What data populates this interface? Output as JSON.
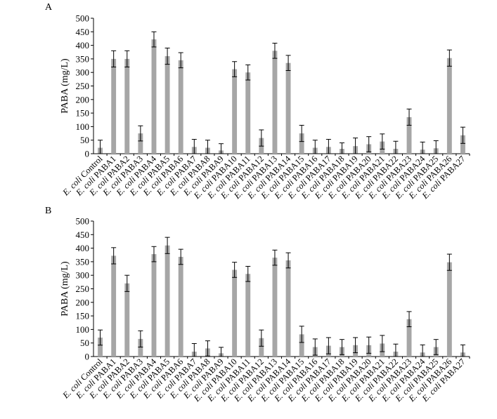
{
  "chart_data": [
    {
      "type": "bar",
      "panel": "A",
      "ylabel": "PABA (mg/L)",
      "ylim": [
        0,
        500
      ],
      "yticks": [
        0,
        50,
        100,
        150,
        200,
        250,
        300,
        350,
        400,
        450,
        500
      ],
      "grid": false,
      "categories": [
        "E. coli Control",
        "E. coli PABA1",
        "E. coli PABA2",
        "E. coli PABA3",
        "E. coli PABA4",
        "E. coli PABA5",
        "E. coli PABA6",
        "E. coli PABA7",
        "E. coli PABA8",
        "E. coli PABA9",
        "E. coli PABA10",
        "E. coli PABA11",
        "E. coli PABA12",
        "E. coli PABA13",
        "E. coli PABA14",
        "E. coli PABA15",
        "E. coli PABA16",
        "E. coli PABA17",
        "E. coli PABA18",
        "E. coli PABA19",
        "E. coli PABA20",
        "E. coli PABA21",
        "E. coli PABA22",
        "E. coli PABA23",
        "E. coli PABA24",
        "E. coli PABA25",
        "E. coli PABA26",
        "E. coli PABA27"
      ],
      "values": [
        22,
        350,
        350,
        75,
        422,
        360,
        345,
        25,
        22,
        12,
        312,
        300,
        58,
        380,
        335,
        75,
        22,
        25,
        18,
        28,
        35,
        45,
        18,
        135,
        15,
        20,
        353,
        68
      ],
      "errors": [
        28,
        30,
        30,
        28,
        28,
        30,
        28,
        28,
        28,
        25,
        28,
        28,
        30,
        28,
        28,
        30,
        28,
        28,
        22,
        30,
        28,
        28,
        28,
        30,
        28,
        28,
        30,
        30
      ],
      "bar_color": "#a6a6a6"
    },
    {
      "type": "bar",
      "panel": "B",
      "ylabel": "PABA (mg/L)",
      "ylim": [
        0,
        500
      ],
      "yticks": [
        0,
        50,
        100,
        150,
        200,
        250,
        300,
        350,
        400,
        450,
        500
      ],
      "grid": false,
      "categories": [
        "E. coli Control",
        "E. coli PABA1",
        "E. coli PABA2",
        "E. coli PABA3",
        "E. coli PABA4",
        "E. coli PABA5",
        "E. coli PABA6",
        "E. coli PABA7",
        "E. coli PABA8",
        "E. coli PABA9",
        "E. coli PABA10",
        "E. coli PABA11",
        "E. coli PABA12",
        "E. coli PABA13",
        "E. coli PABA14",
        "E. coli PABA15",
        "E. coli PABA16",
        "E. coli PABA17",
        "E. coli PABA18",
        "E. coli PABA19",
        "E. coli PABA20",
        "E. coli PABA21",
        "E. coli PABA22",
        "E. coli PABA23",
        "E. coli PABA24",
        "E. coli PABA25",
        "E. coli PABA26",
        "E. coli PABA27"
      ],
      "values": [
        70,
        372,
        270,
        65,
        378,
        410,
        368,
        18,
        30,
        12,
        320,
        305,
        68,
        365,
        355,
        82,
        35,
        40,
        35,
        42,
        42,
        48,
        18,
        138,
        15,
        35,
        348,
        15
      ],
      "errors": [
        28,
        30,
        30,
        30,
        28,
        30,
        28,
        30,
        28,
        22,
        28,
        28,
        30,
        28,
        28,
        30,
        30,
        30,
        28,
        28,
        30,
        30,
        28,
        28,
        28,
        28,
        30,
        28
      ],
      "bar_color": "#a6a6a6"
    }
  ]
}
